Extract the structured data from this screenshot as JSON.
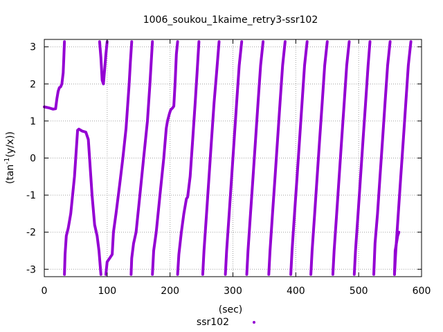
{
  "colors": {
    "series": "#9400d3",
    "grid": "#a0a0a0",
    "axis": "#000000"
  },
  "chart_data": {
    "type": "scatter",
    "title": "1006_soukou_1kaime_retry3-ssr102",
    "xlabel": "(sec)",
    "ylabel_main": "(tan",
    "ylabel_sup": "-1",
    "ylabel_tail": "(y/x))",
    "xlim": [
      0,
      600
    ],
    "ylim": [
      -3.2,
      3.2
    ],
    "x_ticks": [
      0,
      100,
      200,
      300,
      400,
      500,
      600
    ],
    "x_tick_labels": [
      "0",
      "100",
      "200",
      "300",
      "400",
      "500",
      "600"
    ],
    "y_ticks": [
      3,
      2,
      1,
      0,
      -1,
      -2,
      -3
    ],
    "y_tick_labels": [
      "3",
      "2",
      "1",
      "0",
      "-1",
      "-2",
      "-3"
    ],
    "grid": true,
    "legend_placement": "bottom-center",
    "series": [
      {
        "name": "ssr102",
        "color": "#9400d3",
        "marker": "dot",
        "segments": [
          [
            [
              0,
              1.38
            ],
            [
              8,
              1.35
            ],
            [
              14,
              1.32
            ],
            [
              18,
              1.33
            ],
            [
              20,
              1.6
            ],
            [
              22,
              1.8
            ],
            [
              24,
              1.9
            ],
            [
              26,
              1.92
            ],
            [
              28,
              2.0
            ],
            [
              30,
              2.3
            ],
            [
              31,
              2.7
            ],
            [
              32,
              3.14
            ]
          ],
          [
            [
              32,
              -3.14
            ],
            [
              33,
              -2.6
            ],
            [
              35,
              -2.1
            ],
            [
              38,
              -1.9
            ],
            [
              42,
              -1.5
            ],
            [
              45,
              -1.0
            ],
            [
              48,
              -0.5
            ],
            [
              50,
              0.0
            ],
            [
              52,
              0.5
            ],
            [
              53,
              0.75
            ],
            [
              55,
              0.78
            ],
            [
              60,
              0.73
            ],
            [
              66,
              0.7
            ],
            [
              70,
              0.5
            ],
            [
              72,
              0.0
            ],
            [
              76,
              -1.0
            ],
            [
              80,
              -1.8
            ],
            [
              84,
              -2.1
            ],
            [
              87,
              -2.5
            ],
            [
              90,
              -3.14
            ]
          ],
          [
            [
              88,
              3.14
            ],
            [
              90,
              2.7
            ],
            [
              92,
              2.1
            ],
            [
              94,
              2.0
            ],
            [
              96,
              2.4
            ],
            [
              98,
              2.8
            ],
            [
              100,
              3.14
            ]
          ],
          [
            [
              98,
              -3.14
            ],
            [
              100,
              -2.8
            ],
            [
              104,
              -2.7
            ],
            [
              108,
              -2.6
            ],
            [
              110,
              -2.0
            ],
            [
              114,
              -1.5
            ],
            [
              120,
              -0.7
            ],
            [
              125,
              0.0
            ],
            [
              130,
              0.8
            ],
            [
              135,
              2.0
            ],
            [
              137,
              2.6
            ],
            [
              139,
              3.14
            ]
          ],
          [
            [
              138,
              -3.14
            ],
            [
              139,
              -2.7
            ],
            [
              142,
              -2.3
            ],
            [
              146,
              -2.0
            ],
            [
              152,
              -1.0
            ],
            [
              158,
              0.0
            ],
            [
              164,
              1.0
            ],
            [
              168,
              2.0
            ],
            [
              172,
              3.14
            ]
          ],
          [
            [
              172,
              -3.14
            ],
            [
              174,
              -2.5
            ],
            [
              178,
              -2.0
            ],
            [
              184,
              -1.0
            ],
            [
              190,
              0.0
            ],
            [
              194,
              0.8
            ],
            [
              196,
              1.0
            ],
            [
              199,
              1.2
            ],
            [
              201,
              1.3
            ],
            [
              204,
              1.35
            ],
            [
              206,
              1.4
            ],
            [
              208,
              2.0
            ],
            [
              210,
              2.8
            ],
            [
              212,
              3.14
            ]
          ],
          [
            [
              212,
              -3.14
            ],
            [
              214,
              -2.6
            ],
            [
              218,
              -2.0
            ],
            [
              222,
              -1.5
            ],
            [
              226,
              -1.1
            ],
            [
              228,
              -1.05
            ],
            [
              232,
              -0.5
            ],
            [
              236,
              0.5
            ],
            [
              240,
              1.5
            ],
            [
              243,
              2.3
            ],
            [
              246,
              3.14
            ]
          ],
          [
            [
              252,
              -3.14
            ],
            [
              254,
              -2.5
            ],
            [
              258,
              -1.5
            ],
            [
              262,
              -0.5
            ],
            [
              266,
              0.5
            ],
            [
              270,
              1.5
            ],
            [
              274,
              2.3
            ],
            [
              278,
              3.14
            ]
          ],
          [
            [
              288,
              -3.14
            ],
            [
              290,
              -2.5
            ],
            [
              294,
              -1.5
            ],
            [
              298,
              -0.5
            ],
            [
              302,
              0.5
            ],
            [
              306,
              1.5
            ],
            [
              310,
              2.5
            ],
            [
              314,
              3.14
            ]
          ],
          [
            [
              322,
              -3.14
            ],
            [
              324,
              -2.5
            ],
            [
              328,
              -1.5
            ],
            [
              332,
              -0.5
            ],
            [
              336,
              0.5
            ],
            [
              340,
              1.5
            ],
            [
              344,
              2.5
            ],
            [
              348,
              3.14
            ]
          ],
          [
            [
              357,
              -3.14
            ],
            [
              359,
              -2.5
            ],
            [
              363,
              -1.5
            ],
            [
              367,
              -0.5
            ],
            [
              371,
              0.5
            ],
            [
              375,
              1.5
            ],
            [
              379,
              2.5
            ],
            [
              383,
              3.14
            ]
          ],
          [
            [
              392,
              -3.14
            ],
            [
              394,
              -2.5
            ],
            [
              398,
              -1.5
            ],
            [
              402,
              -0.5
            ],
            [
              406,
              0.5
            ],
            [
              410,
              1.5
            ],
            [
              414,
              2.5
            ],
            [
              418,
              3.14
            ]
          ],
          [
            [
              424,
              -3.14
            ],
            [
              426,
              -2.5
            ],
            [
              430,
              -1.5
            ],
            [
              434,
              -0.5
            ],
            [
              438,
              0.5
            ],
            [
              442,
              1.5
            ],
            [
              446,
              2.5
            ],
            [
              450,
              3.14
            ]
          ],
          [
            [
              459,
              -3.14
            ],
            [
              461,
              -2.5
            ],
            [
              465,
              -1.5
            ],
            [
              469,
              -0.5
            ],
            [
              473,
              0.5
            ],
            [
              477,
              1.5
            ],
            [
              481,
              2.5
            ],
            [
              485,
              3.14
            ]
          ],
          [
            [
              493,
              -3.14
            ],
            [
              495,
              -2.5
            ],
            [
              499,
              -1.5
            ],
            [
              503,
              -0.5
            ],
            [
              507,
              0.5
            ],
            [
              511,
              1.5
            ],
            [
              515,
              2.5
            ],
            [
              518,
              3.14
            ]
          ],
          [
            [
              524,
              -3.14
            ],
            [
              526,
              -2.3
            ],
            [
              530,
              -1.5
            ],
            [
              534,
              -0.5
            ],
            [
              538,
              0.5
            ],
            [
              542,
              1.5
            ],
            [
              546,
              2.5
            ],
            [
              550,
              3.14
            ]
          ],
          [
            [
              557,
              -3.14
            ],
            [
              559,
              -2.5
            ],
            [
              563,
              -1.5
            ],
            [
              567,
              -0.5
            ],
            [
              571,
              0.5
            ],
            [
              575,
              1.5
            ],
            [
              579,
              2.5
            ],
            [
              583,
              3.14
            ]
          ],
          [
            [
              557,
              -3.14
            ],
            [
              558,
              -2.5
            ],
            [
              560,
              -2.3
            ],
            [
              562,
              -2.1
            ],
            [
              564,
              -2.0
            ]
          ]
        ]
      }
    ]
  }
}
